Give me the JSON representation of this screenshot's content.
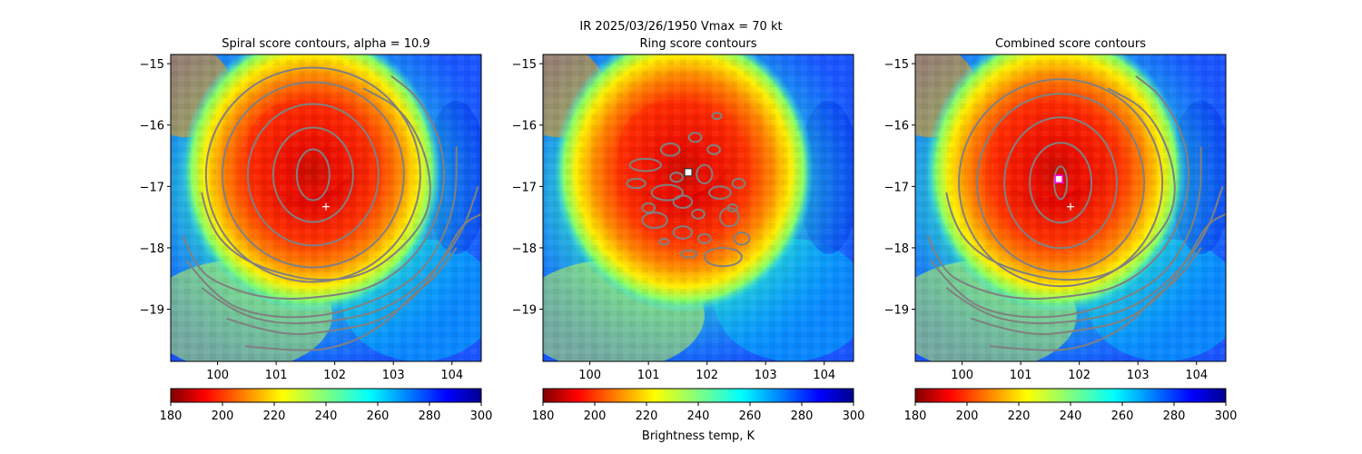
{
  "suptitle": "IR  2025/03/26/1950    Vmax = 70 kt",
  "colorbar_label": "Brightness temp, K",
  "colormap": "jet (reversed)",
  "colors": {
    "contour": "#808080",
    "best_track_marker": "#ffffff",
    "ring_center_marker": "#ffffff",
    "combined_center_marker": "#ff00ff"
  },
  "chart_data": [
    {
      "type": "heatmap",
      "title": "Spiral score contours, alpha = 10.9",
      "x_ticks": [
        "100",
        "101",
        "102",
        "103",
        "104"
      ],
      "y_ticks": [
        "−15",
        "−16",
        "−17",
        "−18",
        "−19"
      ],
      "xlim": [
        99.2,
        104.5
      ],
      "ylim": [
        -19.85,
        -14.85
      ],
      "storm_center": [
        101.6,
        -16.75
      ],
      "best_track_position": [
        101.85,
        -17.33
      ],
      "overlay": "spiral score contours",
      "colorbar": {
        "min": 180,
        "max": 300,
        "ticks": [
          "180",
          "200",
          "220",
          "240",
          "260",
          "280",
          "300"
        ],
        "label": ""
      }
    },
    {
      "type": "heatmap",
      "title": "Ring score contours",
      "x_ticks": [
        "100",
        "101",
        "102",
        "103",
        "104"
      ],
      "y_ticks": [
        "−15",
        "−16",
        "−17",
        "−18",
        "−19"
      ],
      "xlim": [
        99.2,
        104.5
      ],
      "ylim": [
        -19.85,
        -14.85
      ],
      "storm_center": [
        101.6,
        -16.75
      ],
      "ring_center": [
        101.68,
        -16.77
      ],
      "overlay": "ring score contours",
      "colorbar": {
        "min": 180,
        "max": 300,
        "ticks": [
          "180",
          "200",
          "220",
          "240",
          "260",
          "280",
          "300"
        ],
        "label": "Brightness temp, K"
      }
    },
    {
      "type": "heatmap",
      "title": "Combined score contours",
      "x_ticks": [
        "100",
        "101",
        "102",
        "103",
        "104"
      ],
      "y_ticks": [
        "−15",
        "−16",
        "−17",
        "−18",
        "−19"
      ],
      "xlim": [
        99.2,
        104.5
      ],
      "ylim": [
        -19.85,
        -14.85
      ],
      "storm_center": [
        101.6,
        -16.75
      ],
      "best_track_position": [
        101.85,
        -17.33
      ],
      "combined_center": [
        101.65,
        -16.88
      ],
      "overlay": "combined score contours",
      "colorbar": {
        "min": 180,
        "max": 300,
        "ticks": [
          "180",
          "200",
          "220",
          "240",
          "260",
          "280",
          "300"
        ],
        "label": ""
      }
    }
  ]
}
